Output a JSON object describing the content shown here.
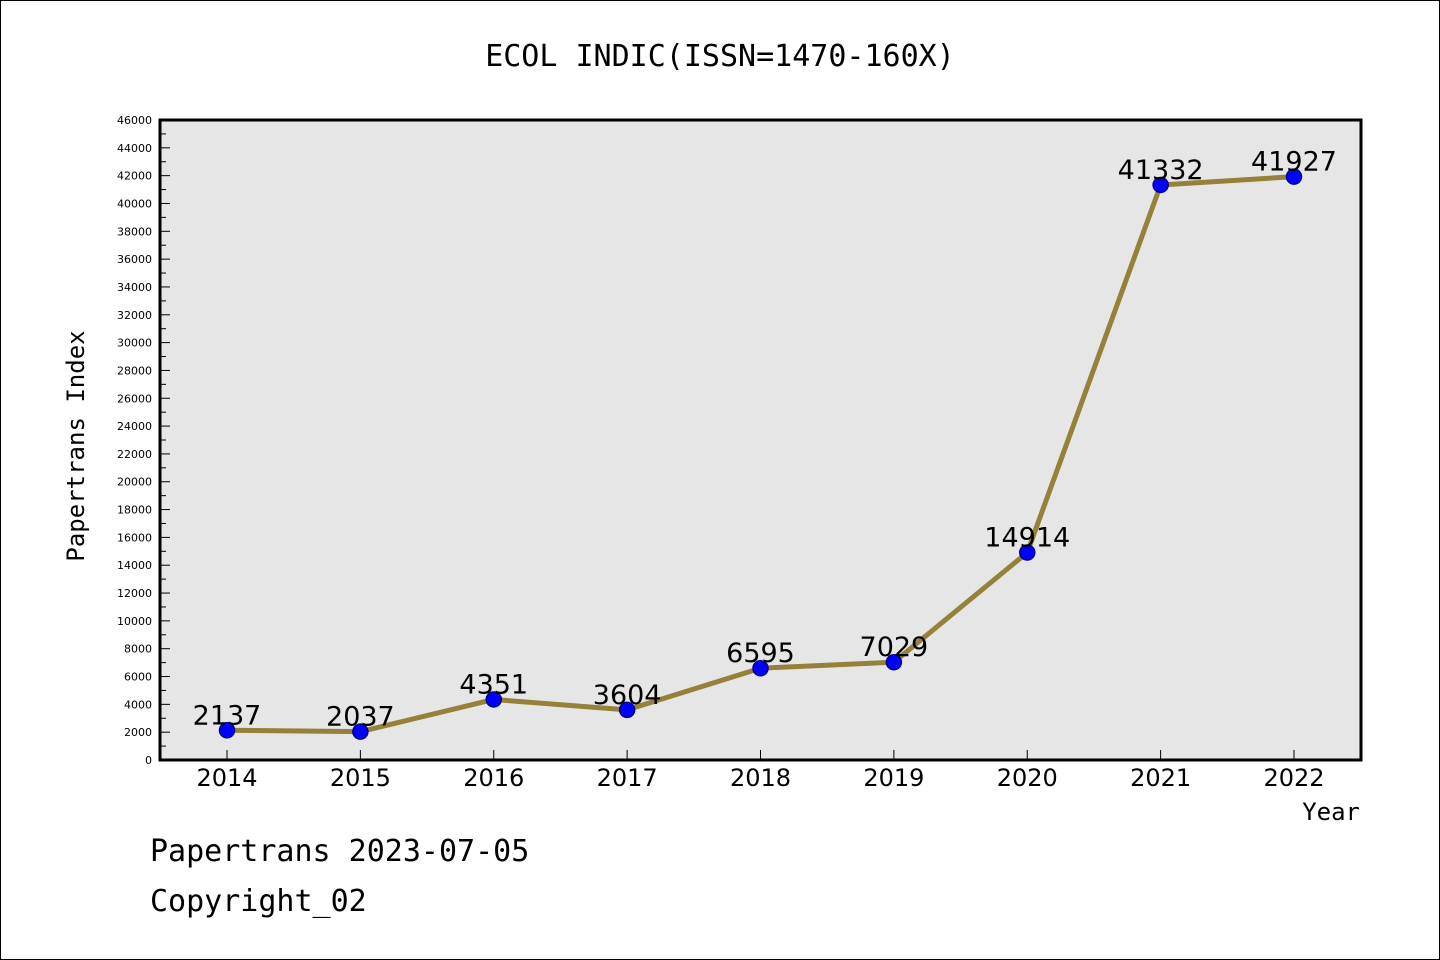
{
  "chart_data": {
    "type": "line",
    "title": "ECOL INDIC(ISSN=1470-160X)",
    "xlabel": "Year",
    "ylabel": "Papertrans Index",
    "categories": [
      "2014",
      "2015",
      "2016",
      "2017",
      "2018",
      "2019",
      "2020",
      "2021",
      "2022"
    ],
    "values": [
      2137,
      2037,
      4351,
      3604,
      6595,
      7029,
      14914,
      41332,
      41927
    ],
    "data_labels": [
      "2137",
      "2037",
      "4351",
      "3604",
      "6595",
      "7029",
      "14914",
      "41332",
      "41927"
    ],
    "ylim": [
      0,
      46000
    ],
    "y_major_step": 2000,
    "y_tick_labels": [
      "0",
      "2000",
      "4000",
      "6000",
      "8000",
      "10000",
      "12000",
      "14000",
      "16000",
      "18000",
      "20000",
      "22000",
      "24000",
      "26000",
      "28000",
      "30000",
      "32000",
      "34000",
      "36000",
      "38000",
      "40000",
      "42000",
      "44000",
      "46000"
    ],
    "grid": false,
    "legend": "none",
    "colors": {
      "line": "#958139",
      "marker_fill": "#0000ff",
      "marker_stroke": "#00008b",
      "plot_background": "#e6e6e6",
      "axis": "#000000"
    }
  },
  "footer": {
    "line1": "Papertrans 2023-07-05",
    "line2": "Copyright_02"
  }
}
